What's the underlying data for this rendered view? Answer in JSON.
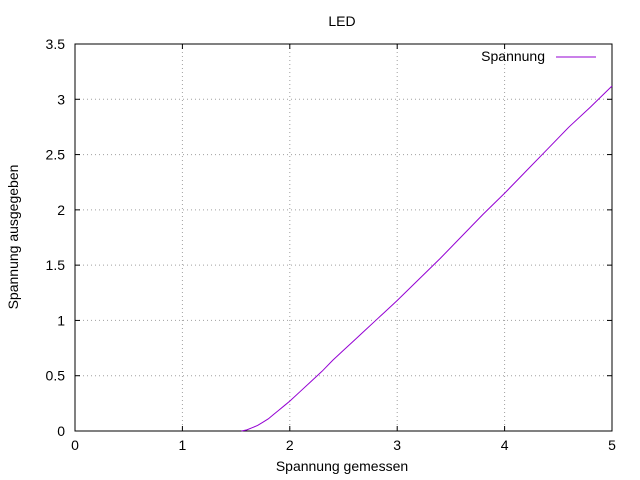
{
  "chart_data": {
    "type": "line",
    "title": "LED",
    "xlabel": "Spannung gemessen",
    "ylabel": "Spannung ausgegeben",
    "xlim": [
      0,
      5
    ],
    "ylim": [
      0,
      3.5
    ],
    "x_ticks": [
      "0",
      "1",
      "2",
      "3",
      "4",
      "5"
    ],
    "y_ticks": [
      "0",
      "0.5",
      "1",
      "1.5",
      "2",
      "2.5",
      "3",
      "3.5"
    ],
    "grid": true,
    "legend_position": "top-right",
    "series": [
      {
        "name": "Spannung",
        "color": "#9400d3",
        "x": [
          1.55,
          1.6,
          1.65,
          1.7,
          1.75,
          1.8,
          1.85,
          1.9,
          1.95,
          2.0,
          2.1,
          2.2,
          2.3,
          2.4,
          2.5,
          2.6,
          2.7,
          2.8,
          2.9,
          3.0,
          3.2,
          3.4,
          3.6,
          3.8,
          4.0,
          4.2,
          4.4,
          4.6,
          4.8,
          5.0
        ],
        "y": [
          0.0,
          0.01,
          0.03,
          0.05,
          0.08,
          0.11,
          0.15,
          0.19,
          0.23,
          0.27,
          0.36,
          0.45,
          0.54,
          0.64,
          0.73,
          0.82,
          0.91,
          1.0,
          1.09,
          1.18,
          1.37,
          1.56,
          1.76,
          1.96,
          2.15,
          2.35,
          2.55,
          2.75,
          2.93,
          3.12
        ]
      }
    ]
  }
}
